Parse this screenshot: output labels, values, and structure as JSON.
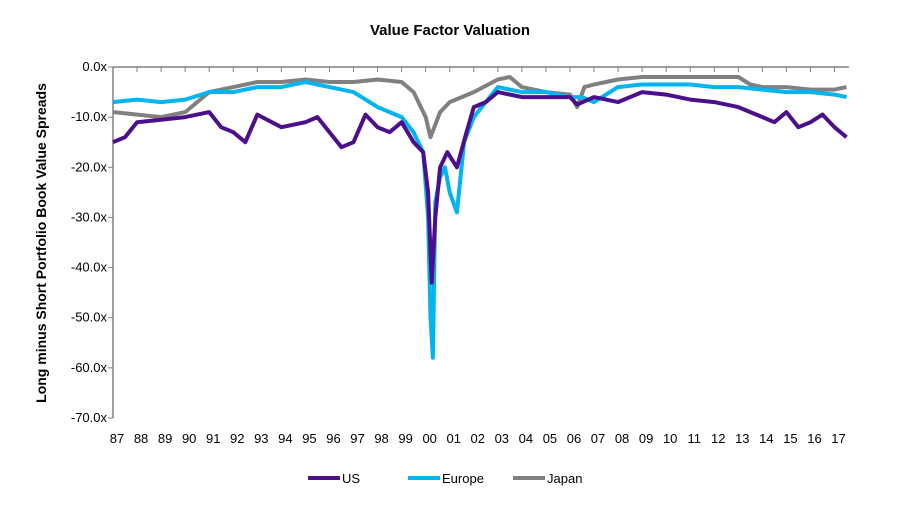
{
  "chart_data": {
    "type": "line",
    "title": "Value Factor Valuation",
    "xlabel": "",
    "ylabel": "Long minus Short Portfolio Book Value Spreads",
    "ylim": [
      -70,
      0
    ],
    "yticks": [
      "0.0x",
      "-10.0x",
      "-20.0x",
      "-30.0x",
      "-40.0x",
      "-50.0x",
      "-60.0x",
      "-70.0x"
    ],
    "ytick_values": [
      0,
      -10,
      -20,
      -30,
      -40,
      -50,
      -60,
      -70
    ],
    "xticks": [
      "87",
      "88",
      "89",
      "90",
      "91",
      "92",
      "93",
      "94",
      "95",
      "96",
      "97",
      "98",
      "99",
      "00",
      "01",
      "02",
      "03",
      "04",
      "05",
      "06",
      "07",
      "08",
      "09",
      "10",
      "11",
      "12",
      "13",
      "14",
      "15",
      "16",
      "17"
    ],
    "xlim": [
      1987,
      2017.6
    ],
    "grid": false,
    "legend": "bottom",
    "series": [
      {
        "name": "US",
        "color": "#4b0f8c",
        "x": [
          1987,
          1987.5,
          1988,
          1989,
          1990,
          1991,
          1991.5,
          1992,
          1992.5,
          1993,
          1994,
          1995,
          1995.5,
          1996,
          1996.5,
          1997,
          1997.5,
          1998,
          1998.5,
          1999,
          1999.5,
          1999.9,
          2000.1,
          2000.25,
          2000.4,
          2000.6,
          2000.9,
          2001.3,
          2001.7,
          2002,
          2002.5,
          2003,
          2004,
          2005,
          2006,
          2006.3,
          2007,
          2008,
          2009,
          2010,
          2011,
          2012,
          2013,
          2013.5,
          2014,
          2014.5,
          2015,
          2015.5,
          2016,
          2016.5,
          2017,
          2017.5
        ],
        "y": [
          -15,
          -14,
          -11,
          -10.5,
          -10,
          -9,
          -12,
          -13,
          -15,
          -9.5,
          -12,
          -11,
          -10,
          -13,
          -16,
          -15,
          -9.5,
          -12,
          -13,
          -11,
          -15,
          -17,
          -25,
          -43,
          -30,
          -20,
          -17,
          -20,
          -13,
          -8,
          -7,
          -5,
          -6,
          -6,
          -6,
          -7.5,
          -6,
          -7,
          -5,
          -5.5,
          -6.5,
          -7,
          -8,
          -9,
          -10,
          -11,
          -9,
          -12,
          -11,
          -9.5,
          -12,
          -14
        ]
      },
      {
        "name": "Europe",
        "color": "#00b4f0",
        "x": [
          1987,
          1988,
          1989,
          1990,
          1991,
          1992,
          1993,
          1994,
          1995,
          1996,
          1997,
          1998,
          1998.5,
          1999,
          1999.5,
          1999.9,
          2000.1,
          2000.2,
          2000.3,
          2000.4,
          2000.6,
          2000.8,
          2001,
          2001.3,
          2001.6,
          2002,
          2002.5,
          2003,
          2004,
          2005,
          2006,
          2006.5,
          2007,
          2008,
          2009,
          2010,
          2011,
          2012,
          2013,
          2014,
          2015,
          2016,
          2017,
          2017.5
        ],
        "y": [
          -7,
          -6.5,
          -7,
          -6.5,
          -5,
          -5,
          -4,
          -4,
          -3,
          -4,
          -5,
          -8,
          -9,
          -10,
          -13,
          -17,
          -30,
          -50,
          -58,
          -27,
          -22,
          -20,
          -25,
          -29,
          -15,
          -10,
          -7,
          -4,
          -5,
          -5,
          -6,
          -6,
          -7,
          -4,
          -3.5,
          -3.5,
          -3.5,
          -4,
          -4,
          -4.5,
          -5,
          -5,
          -5.5,
          -6
        ]
      },
      {
        "name": "Japan",
        "color": "#808080",
        "x": [
          1987,
          1988,
          1989,
          1990,
          1991,
          1992,
          1993,
          1994,
          1995,
          1996,
          1997,
          1998,
          1999,
          1999.5,
          2000,
          2000.2,
          2000.6,
          2001,
          2002,
          2003,
          2003.5,
          2004,
          2005,
          2006,
          2006.3,
          2006.6,
          2007,
          2008,
          2009,
          2010,
          2011,
          2012,
          2013,
          2013.5,
          2014,
          2015,
          2016,
          2017,
          2017.5
        ],
        "y": [
          -9,
          -9.5,
          -10,
          -9,
          -5,
          -4,
          -3,
          -3,
          -2.5,
          -3,
          -3,
          -2.5,
          -3,
          -5,
          -10,
          -14,
          -9,
          -7,
          -5,
          -2.5,
          -2,
          -4,
          -5,
          -5.5,
          -8,
          -4,
          -3.5,
          -2.5,
          -2,
          -2,
          -2,
          -2,
          -2,
          -3.5,
          -4,
          -4,
          -4.5,
          -4.5,
          -4
        ]
      }
    ]
  }
}
